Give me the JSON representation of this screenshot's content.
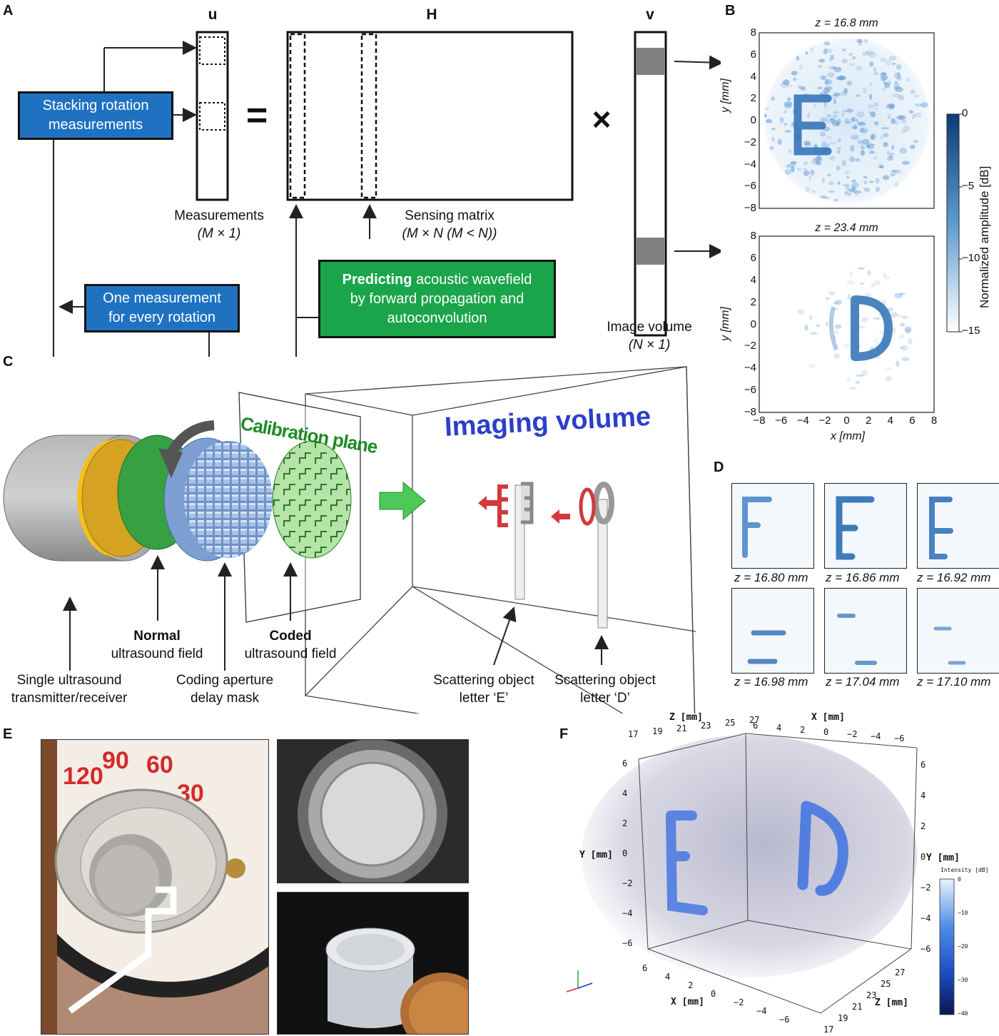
{
  "panels": {
    "A": "A",
    "B": "B",
    "C": "C",
    "D": "D",
    "E": "E",
    "F": "F"
  },
  "panel_a": {
    "u_label": "u",
    "h_label": "H",
    "v_label": "v",
    "equals": "=",
    "times": "×",
    "stacking_box": [
      "Stacking rotation",
      "measurements"
    ],
    "one_meas_box": [
      "One measurement",
      "for every rotation"
    ],
    "predict_box": {
      "bold": "Predicting",
      "rest": " acoustic wavefield",
      "line2": "by forward propagation and",
      "line3": "autoconvolution"
    },
    "measurements_label": "Measurements",
    "measurements_dim": "(M × 1)",
    "sensing_label": "Sensing matrix",
    "sensing_dim": "(M × N (M < N))",
    "image_volume_label": "Image volume",
    "image_volume_dim": "(N × 1)"
  },
  "panel_b": {
    "top_title": "z = 16.8 mm",
    "bottom_title": "z = 23.4 mm",
    "ylabel": "y [mm]",
    "xlabel": "x [mm]",
    "yticks": [
      "8",
      "6",
      "4",
      "2",
      "0",
      "−2",
      "−4",
      "−6",
      "−8"
    ],
    "xticks": [
      "−8",
      "−6",
      "−4",
      "−2",
      "0",
      "2",
      "4",
      "6",
      "8"
    ],
    "colorbar_label": "Normalized amplitude [dB]",
    "colorbar_ticks": [
      "0",
      "−5",
      "−10",
      "−15"
    ],
    "colors": {
      "dark": "#0d3c78",
      "light": "#ffffff"
    }
  },
  "panel_c": {
    "calibration_plane": "Calibration plane",
    "imaging_volume": "Imaging volume",
    "normal_bold": "Normal",
    "normal_rest": "ultrasound field",
    "coded_bold": "Coded",
    "coded_rest": "ultrasound field",
    "transducer": [
      "Single ultrasound",
      "transmitter/receiver"
    ],
    "mask": [
      "Coding aperture",
      "delay mask"
    ],
    "scatter_e": [
      "Scattering object",
      "letter ‘E’"
    ],
    "scatter_d": [
      "Scattering object",
      "letter ‘D’"
    ]
  },
  "panel_d": {
    "captions": [
      "z = 16.80 mm",
      "z = 16.86 mm",
      "z = 16.92 mm",
      "z = 16.98 mm",
      "z = 17.04 mm",
      "z = 17.10 mm"
    ]
  },
  "panel_e": {
    "dial_numbers": [
      "120",
      "90",
      "60",
      "30"
    ]
  },
  "panel_f": {
    "z_axis_label": "Z [mm]",
    "x_axis_label": "X [mm]",
    "y_axis_label": "Y [mm]",
    "top_z_ticks": [
      "17",
      "19",
      "21",
      "23",
      "25",
      "27"
    ],
    "top_x_ticks": [
      "6",
      "4",
      "2",
      "0",
      "−2",
      "−4",
      "−6"
    ],
    "left_y_ticks": [
      "6",
      "4",
      "2",
      "0",
      "−2",
      "−4",
      "−6"
    ],
    "right_y_ticks": [
      "6",
      "4",
      "2",
      "0",
      "−2",
      "−4",
      "−6"
    ],
    "bottom_x_ticks": [
      "6",
      "4",
      "2",
      "0",
      "−2",
      "−4",
      "−6"
    ],
    "bottom_z_ticks": [
      "27",
      "25",
      "23",
      "21",
      "19",
      "17"
    ],
    "colorbar_title": "Intensity [dB]",
    "colorbar_ticks": [
      "0",
      "−10",
      "−20",
      "−30",
      "−40"
    ]
  }
}
